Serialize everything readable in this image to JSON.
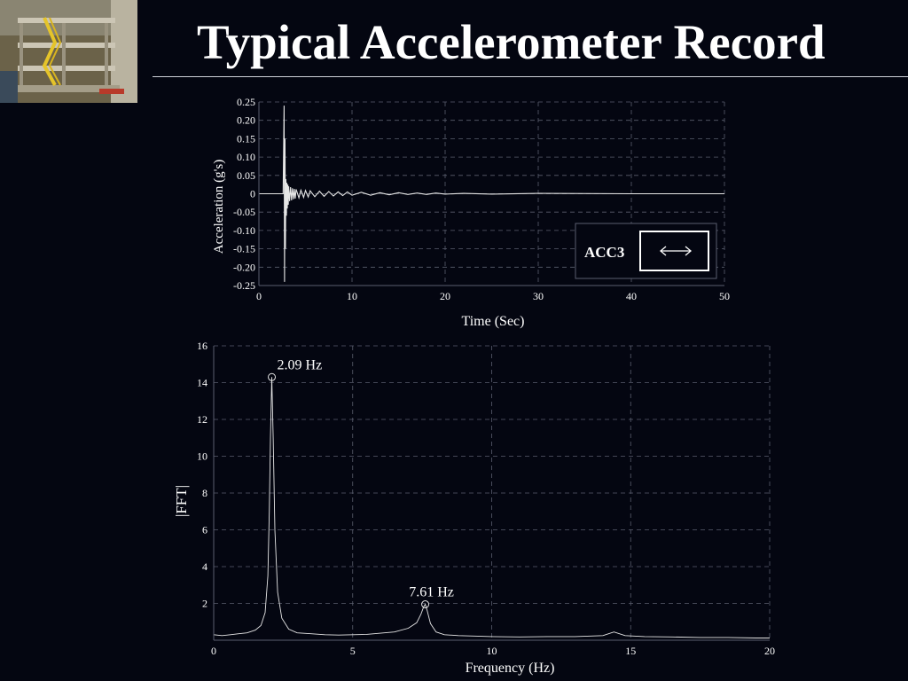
{
  "slide": {
    "title": "Typical Accelerometer Record"
  },
  "colors": {
    "background": "#040611",
    "foreground": "#ffffff",
    "grid": "#5a5e6e",
    "trace": "#e6e6e6"
  },
  "photo": {
    "icon": "building-test-structure-photo"
  },
  "chart_data": [
    {
      "type": "line",
      "title": "",
      "xlabel": "Time (Sec)",
      "ylabel": "Acceleration (g's)",
      "xlim": [
        0,
        50
      ],
      "ylim": [
        -0.25,
        0.25
      ],
      "xticks": [
        0,
        10,
        20,
        30,
        40,
        50
      ],
      "xticklabels": [
        "0",
        "10",
        "20",
        "30",
        "40",
        "50"
      ],
      "yticks": [
        0.25,
        0.2,
        0.15,
        0.1,
        0.05,
        0,
        -0.05,
        -0.1,
        -0.15,
        -0.2,
        -0.25
      ],
      "yticklabels": [
        "0.25",
        "0.20",
        "0.15",
        "0.10",
        "0.05",
        "0",
        "-0.05",
        "-0.10",
        "-0.15",
        "-0.20",
        "-0.25"
      ],
      "grid": true,
      "annotation": {
        "label": "ACC3",
        "icon": "horizontal-double-arrow-icon",
        "placement": "bottom-right"
      },
      "series": [
        {
          "x": [
            0,
            2.6,
            2.7,
            2.75,
            2.8,
            2.85,
            2.9,
            2.95,
            3.0,
            3.05,
            3.1,
            3.15,
            3.2,
            3.3,
            3.4,
            3.5,
            3.6,
            3.7,
            3.8,
            3.9,
            4.0,
            4.3,
            4.5,
            4.8,
            5.0,
            5.3,
            5.5,
            6.0,
            6.5,
            7.0,
            7.5,
            8.0,
            8.5,
            9.0,
            9.5,
            10.0,
            11.0,
            12.0,
            13.0,
            14.0,
            15.0,
            16.0,
            17.0,
            18.0,
            19.0,
            20.0,
            22.0,
            25.0,
            30.0,
            40.0,
            50.0
          ],
          "y": [
            0,
            0,
            0.24,
            -0.24,
            0.15,
            -0.15,
            0.04,
            -0.06,
            0.03,
            -0.04,
            0.025,
            -0.03,
            0.02,
            -0.02,
            0.018,
            -0.018,
            0.015,
            -0.015,
            0.013,
            -0.013,
            0.012,
            -0.011,
            0.01,
            -0.01,
            0.009,
            -0.009,
            0.008,
            -0.008,
            0.007,
            -0.007,
            0.006,
            -0.006,
            0.005,
            -0.005,
            0.005,
            -0.004,
            0.004,
            -0.004,
            0.003,
            -0.003,
            0.003,
            -0.002,
            0.002,
            -0.002,
            0.002,
            -0.001,
            0.001,
            -0.001,
            0.001,
            0,
            0
          ]
        }
      ]
    },
    {
      "type": "line",
      "title": "",
      "xlabel": "Frequency (Hz)",
      "ylabel": "|FFT|",
      "xlim": [
        0,
        20
      ],
      "ylim": [
        0,
        16
      ],
      "xticks": [
        0,
        5,
        10,
        15,
        20
      ],
      "yticks": [
        2,
        4,
        6,
        8,
        10,
        12,
        14,
        16
      ],
      "grid": true,
      "peaks": [
        {
          "x": 2.09,
          "y": 14.3,
          "label": "2.09 Hz"
        },
        {
          "x": 7.61,
          "y": 1.95,
          "label": "7.61 Hz"
        }
      ],
      "series": [
        {
          "x": [
            0,
            0.3,
            0.6,
            0.9,
            1.2,
            1.5,
            1.7,
            1.85,
            1.95,
            2.0,
            2.04,
            2.09,
            2.14,
            2.2,
            2.3,
            2.45,
            2.7,
            3.0,
            3.5,
            4.0,
            4.5,
            5.0,
            5.5,
            6.0,
            6.5,
            7.0,
            7.3,
            7.45,
            7.55,
            7.61,
            7.68,
            7.8,
            8.0,
            8.3,
            8.8,
            9.5,
            10.0,
            11.0,
            12.0,
            13.0,
            14.0,
            14.4,
            14.8,
            15.5,
            16.5,
            17.5,
            18.5,
            19.5,
            20.0
          ],
          "y": [
            0.3,
            0.25,
            0.3,
            0.35,
            0.4,
            0.55,
            0.8,
            1.5,
            3.5,
            7.0,
            11.0,
            14.3,
            11.0,
            6.0,
            2.6,
            1.2,
            0.6,
            0.4,
            0.35,
            0.3,
            0.28,
            0.3,
            0.32,
            0.38,
            0.45,
            0.65,
            0.95,
            1.4,
            1.8,
            1.95,
            1.6,
            0.9,
            0.45,
            0.3,
            0.25,
            0.22,
            0.2,
            0.18,
            0.2,
            0.2,
            0.25,
            0.45,
            0.25,
            0.2,
            0.18,
            0.15,
            0.15,
            0.12,
            0.12
          ]
        }
      ]
    }
  ]
}
